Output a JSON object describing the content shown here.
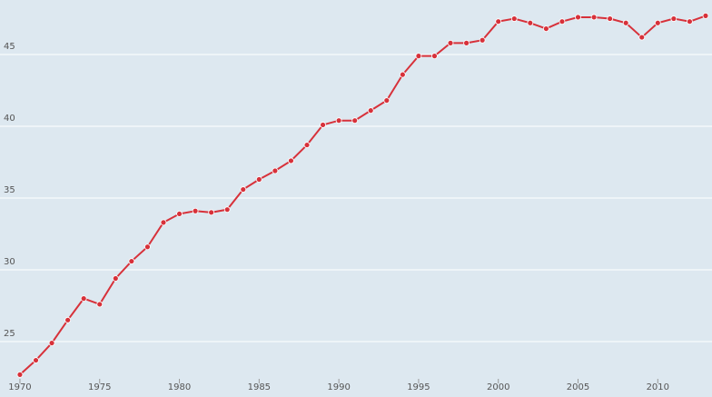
{
  "chart_data": {
    "type": "line",
    "x": [
      1970,
      1971,
      1972,
      1973,
      1974,
      1975,
      1976,
      1977,
      1978,
      1979,
      1980,
      1981,
      1982,
      1983,
      1984,
      1985,
      1986,
      1987,
      1988,
      1989,
      1990,
      1991,
      1992,
      1993,
      1994,
      1995,
      1996,
      1997,
      1998,
      1999,
      2000,
      2001,
      2002,
      2003,
      2004,
      2005,
      2006,
      2007,
      2008,
      2009,
      2010,
      2011,
      2012,
      2013
    ],
    "series": [
      {
        "color": "#d7313a",
        "values": [
          22.7,
          23.7,
          24.9,
          26.5,
          28.0,
          27.6,
          29.4,
          30.6,
          31.6,
          33.3,
          33.9,
          34.1,
          34.0,
          34.2,
          35.6,
          36.3,
          36.9,
          37.6,
          38.7,
          40.1,
          40.4,
          40.4,
          41.1,
          41.8,
          43.6,
          44.9,
          44.9,
          45.8,
          45.8,
          46.0,
          47.3,
          47.5,
          47.2,
          46.8,
          47.3,
          47.6,
          47.6,
          47.5,
          47.2,
          46.2,
          47.2,
          47.5,
          47.3,
          47.7
        ]
      }
    ],
    "xlim": [
      1968.75,
      2013.4
    ],
    "xticks": [
      1970,
      1975,
      1980,
      1985,
      1990,
      1995,
      2000,
      2005,
      2010
    ],
    "ylim": [
      21.14,
      48.8
    ],
    "yticks": [
      25,
      30,
      35,
      40,
      45
    ],
    "grid": true
  }
}
